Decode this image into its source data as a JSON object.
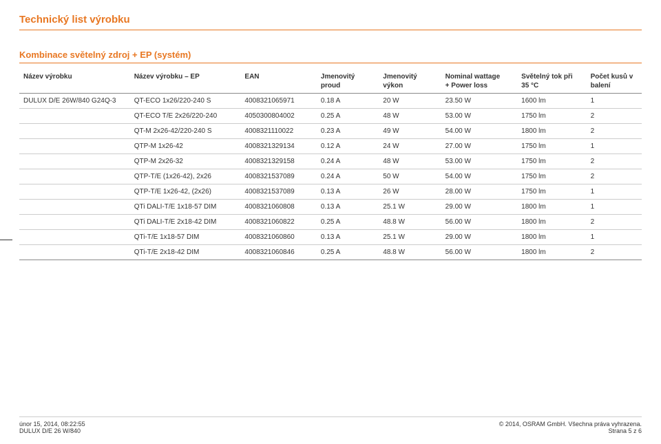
{
  "doc_title": "Technický list výrobku",
  "section_title": "Kombinace světelný zdroj + EP (systém)",
  "columns": {
    "c0": "Název výrobku",
    "c1": "Název výrobku – EP",
    "c2": "EAN",
    "c3": "Jmenovitý proud",
    "c4": "Jmenovitý výkon",
    "c5a": "Nominal wattage",
    "c5b": "+ Power loss",
    "c6a": "Světelný tok při",
    "c6b": "35 °C",
    "c7a": "Počet kusů v",
    "c7b": "balení"
  },
  "product_group": "DULUX D/E 26W/840 G24Q-3",
  "rows": [
    {
      "ep": "QT-ECO 1x26/220-240 S",
      "ean": "4008321065971",
      "cur": "0.18 A",
      "pow": "20 W",
      "watt": "23.50 W",
      "flux": "1600 lm",
      "qty": "1"
    },
    {
      "ep": "QT-ECO T/E 2x26/220-240",
      "ean": "4050300804002",
      "cur": "0.25 A",
      "pow": "48 W",
      "watt": "53.00 W",
      "flux": "1750 lm",
      "qty": "2"
    },
    {
      "ep": "QT-M 2x26-42/220-240 S",
      "ean": "4008321110022",
      "cur": "0.23 A",
      "pow": "49 W",
      "watt": "54.00 W",
      "flux": "1800 lm",
      "qty": "2"
    },
    {
      "ep": "QTP-M 1x26-42",
      "ean": "4008321329134",
      "cur": "0.12 A",
      "pow": "24 W",
      "watt": "27.00 W",
      "flux": "1750 lm",
      "qty": "1"
    },
    {
      "ep": "QTP-M 2x26-32",
      "ean": "4008321329158",
      "cur": "0.24 A",
      "pow": "48 W",
      "watt": "53.00 W",
      "flux": "1750 lm",
      "qty": "2"
    },
    {
      "ep": "QTP-T/E (1x26-42), 2x26",
      "ean": "4008321537089",
      "cur": "0.24 A",
      "pow": "50 W",
      "watt": "54.00 W",
      "flux": "1750 lm",
      "qty": "2"
    },
    {
      "ep": "QTP-T/E 1x26-42, (2x26)",
      "ean": "4008321537089",
      "cur": "0.13 A",
      "pow": "26 W",
      "watt": "28.00 W",
      "flux": "1750 lm",
      "qty": "1"
    },
    {
      "ep": "QTi DALI-T/E 1x18-57 DIM",
      "ean": "4008321060808",
      "cur": "0.13 A",
      "pow": "25.1 W",
      "watt": "29.00 W",
      "flux": "1800 lm",
      "qty": "1"
    },
    {
      "ep": "QTi DALI-T/E 2x18-42 DIM",
      "ean": "4008321060822",
      "cur": "0.25 A",
      "pow": "48.8 W",
      "watt": "56.00 W",
      "flux": "1800 lm",
      "qty": "2"
    },
    {
      "ep": "QTi-T/E 1x18-57 DIM",
      "ean": "4008321060860",
      "cur": "0.13 A",
      "pow": "25.1 W",
      "watt": "29.00 W",
      "flux": "1800 lm",
      "qty": "1"
    },
    {
      "ep": "QTi-T/E 2x18-42 DIM",
      "ean": "4008321060846",
      "cur": "0.25 A",
      "pow": "48.8 W",
      "watt": "56.00 W",
      "flux": "1800 lm",
      "qty": "2"
    }
  ],
  "footer": {
    "date": "únor 15, 2014, 08:22:55",
    "product": "DULUX D/E 26 W/840",
    "copyright": "© 2014, OSRAM GmbH. Všechna práva vyhrazena.",
    "page": "Strana 5 z 6"
  }
}
